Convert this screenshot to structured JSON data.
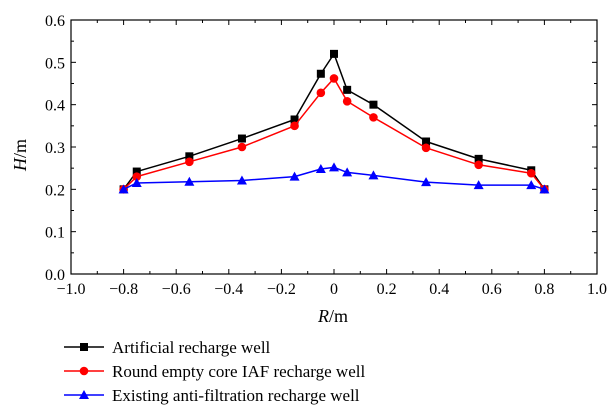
{
  "chart_data": {
    "type": "line",
    "xlabel_var": "R",
    "xlabel_unit": "/m",
    "ylabel_var": "H",
    "ylabel_unit": "/m",
    "xlim": [
      -1.0,
      1.0
    ],
    "ylim": [
      0.0,
      0.6
    ],
    "xticks": [
      -1.0,
      -0.8,
      -0.6,
      -0.4,
      -0.2,
      0.0,
      0.2,
      0.4,
      0.6,
      0.8,
      1.0
    ],
    "xtick_labels": [
      "−1.0",
      "−0.8",
      "−0.6",
      "−0.4",
      "−0.2",
      "0",
      "0.2",
      "0.4",
      "0.6",
      "0.8",
      "1.0"
    ],
    "yticks": [
      0.0,
      0.1,
      0.2,
      0.3,
      0.4,
      0.5,
      0.6
    ],
    "ytick_labels": [
      "0.0",
      "0.1",
      "0.2",
      "0.3",
      "0.4",
      "0.5",
      "0.6"
    ],
    "grid": false,
    "legend_position": "bottom",
    "series": [
      {
        "name": "Artificial recharge well",
        "color": "#000000",
        "marker": "square",
        "x": [
          -0.8,
          -0.75,
          -0.55,
          -0.35,
          -0.15,
          -0.05,
          0.0,
          0.05,
          0.15,
          0.35,
          0.55,
          0.75,
          0.8
        ],
        "y": [
          0.2,
          0.242,
          0.278,
          0.32,
          0.365,
          0.473,
          0.52,
          0.435,
          0.4,
          0.313,
          0.272,
          0.245,
          0.2
        ]
      },
      {
        "name": "Round empty core IAF recharge well",
        "color": "#ff0000",
        "marker": "circle",
        "x": [
          -0.8,
          -0.75,
          -0.55,
          -0.35,
          -0.15,
          -0.05,
          0.0,
          0.05,
          0.15,
          0.35,
          0.55,
          0.75,
          0.8
        ],
        "y": [
          0.2,
          0.23,
          0.265,
          0.3,
          0.35,
          0.428,
          0.462,
          0.408,
          0.37,
          0.298,
          0.258,
          0.238,
          0.2
        ]
      },
      {
        "name": "Existing anti-filtration recharge well",
        "color": "#0000ff",
        "marker": "triangle",
        "x": [
          -0.8,
          -0.75,
          -0.55,
          -0.35,
          -0.15,
          -0.05,
          0.0,
          0.05,
          0.15,
          0.35,
          0.55,
          0.75,
          0.8
        ],
        "y": [
          0.2,
          0.215,
          0.218,
          0.221,
          0.23,
          0.248,
          0.252,
          0.24,
          0.233,
          0.217,
          0.21,
          0.21,
          0.2
        ]
      }
    ]
  }
}
